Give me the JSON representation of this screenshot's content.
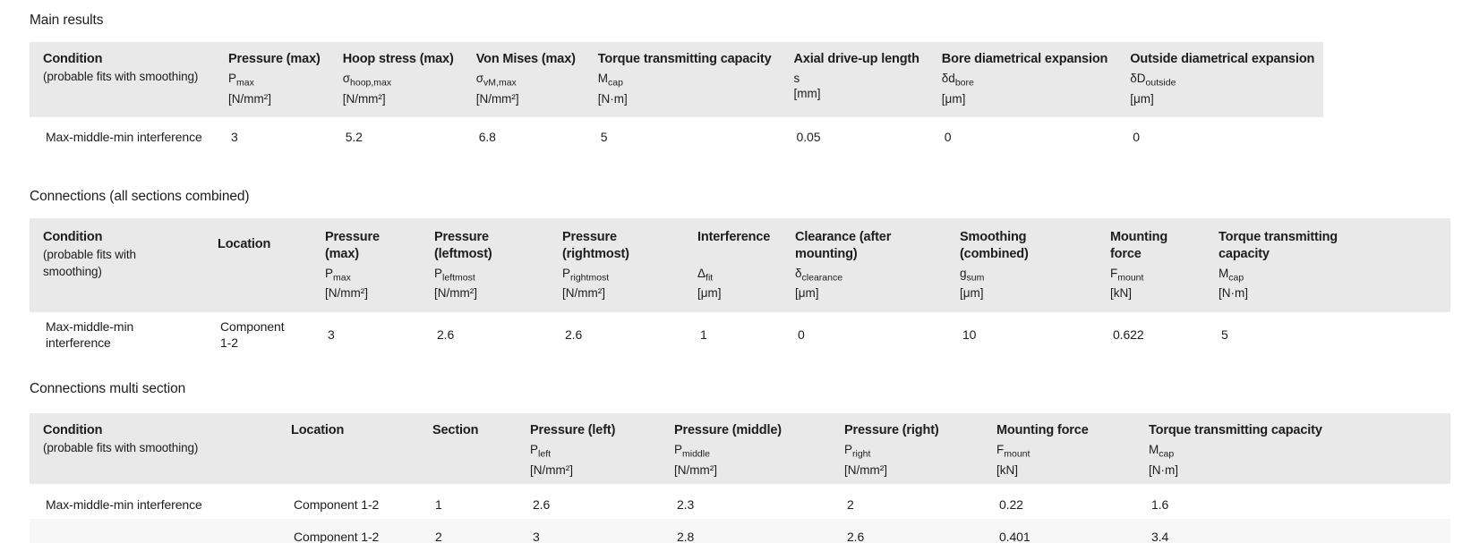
{
  "page": {
    "background_color": "#ffffff",
    "text_color": "#1d1d1b",
    "header_band_color": "#e9e9ea",
    "shaded_row_color": "#f7f7f7"
  },
  "sections": [
    {
      "title": "Main results",
      "table": {
        "columns": [
          {
            "label": "Condition",
            "sub_label": "(probable fits with smoothing)"
          },
          {
            "label": "Pressure (max)",
            "sym": "P",
            "sub": "max",
            "unit": "[N/mm²]"
          },
          {
            "label": "Hoop stress (max)",
            "sym": "σ",
            "sub": "hoop,max",
            "unit": "[N/mm²]"
          },
          {
            "label": "Von Mises (max)",
            "sym": "σ",
            "sub": "vM,max",
            "unit": "[N/mm²]"
          },
          {
            "label": "Torque transmitting capacity",
            "sym": "M",
            "sub": "cap",
            "unit": "[N·m]"
          },
          {
            "label": "Axial drive-up length",
            "sym": "s",
            "sub": "",
            "unit": "[mm]"
          },
          {
            "label": "Bore diametrical expansion",
            "sym": "δd",
            "sub": "bore",
            "unit": "[μm]"
          },
          {
            "label": "Outside diametrical expansion",
            "sym": "δD",
            "sub": "outside",
            "unit": "[μm]"
          }
        ],
        "rows": [
          {
            "shaded": false,
            "cells": [
              "Max-middle-min interference",
              "3",
              "5.2",
              "6.8",
              "5",
              "0.05",
              "0",
              "0"
            ]
          }
        ]
      }
    },
    {
      "title": "Connections (all sections combined)",
      "table": {
        "columns": [
          {
            "label": "Condition",
            "sub_label": "(probable fits with smoothing)"
          },
          {
            "label": "Location"
          },
          {
            "label": "Pressure (max)",
            "sym": "P",
            "sub": "max",
            "unit": "[N/mm²]"
          },
          {
            "label": "Pressure (leftmost)",
            "sym": "P",
            "sub": "leftmost",
            "unit": "[N/mm²]"
          },
          {
            "label": "Pressure (rightmost)",
            "sym": "P",
            "sub": "rightmost",
            "unit": "[N/mm²]"
          },
          {
            "label": "Interference",
            "sym": "Δ",
            "sub": "fit",
            "unit": "[μm]"
          },
          {
            "label": "Clearance (after mounting)",
            "sym": "δ",
            "sub": "clearance",
            "unit": "[μm]"
          },
          {
            "label": "Smoothing (combined)",
            "sym": "g",
            "sub": "sum",
            "unit": "[μm]"
          },
          {
            "label": "Mounting force",
            "sym": "F",
            "sub": "mount",
            "unit": "[kN]"
          },
          {
            "label": "Torque transmitting capacity",
            "sym": "M",
            "sub": "cap",
            "unit": "[N·m]"
          }
        ],
        "rows": [
          {
            "shaded": false,
            "cells": [
              "Max-middle-min interference",
              "Component 1-2",
              "3",
              "2.6",
              "2.6",
              "1",
              "0",
              "10",
              "0.622",
              "5"
            ]
          }
        ]
      }
    },
    {
      "title": "Connections multi section",
      "table": {
        "columns": [
          {
            "label": "Condition",
            "sub_label": "(probable fits with smoothing)"
          },
          {
            "label": "Location"
          },
          {
            "label": "Section"
          },
          {
            "label": "Pressure (left)",
            "sym": "P",
            "sub": "left",
            "unit": "[N/mm²]"
          },
          {
            "label": "Pressure (middle)",
            "sym": "P",
            "sub": "middle",
            "unit": "[N/mm²]"
          },
          {
            "label": "Pressure (right)",
            "sym": "P",
            "sub": "right",
            "unit": "[N/mm²]"
          },
          {
            "label": "Mounting force",
            "sym": "F",
            "sub": "mount",
            "unit": "[kN]"
          },
          {
            "label": "Torque transmitting capacity",
            "sym": "M",
            "sub": "cap",
            "unit": "[N·m]"
          }
        ],
        "rows": [
          {
            "shaded": false,
            "cells": [
              "Max-middle-min interference",
              "Component 1-2",
              "1",
              "2.6",
              "2.3",
              "2",
              "0.22",
              "1.6"
            ]
          },
          {
            "shaded": true,
            "cells": [
              "",
              "Component 1-2",
              "2",
              "3",
              "2.8",
              "2.6",
              "0.401",
              "3.4"
            ]
          }
        ]
      }
    }
  ]
}
